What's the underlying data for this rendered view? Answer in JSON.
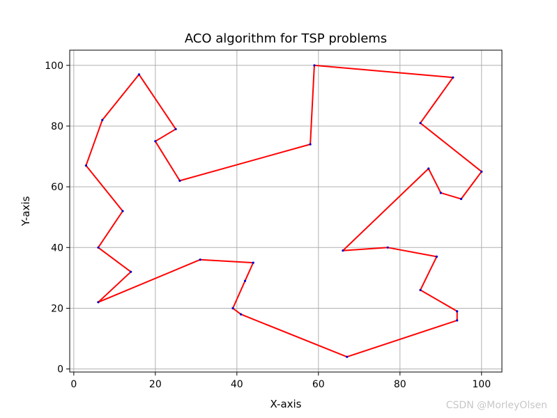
{
  "watermark": "CSDN @MorleyOlsen",
  "chart_data": {
    "type": "line",
    "title": "ACO algorithm for TSP problems",
    "xlabel": "X-axis",
    "ylabel": "Y-axis",
    "xlim": [
      -1,
      105
    ],
    "ylim": [
      -1,
      105
    ],
    "xticks": [
      0,
      20,
      40,
      60,
      80,
      100
    ],
    "yticks": [
      0,
      20,
      40,
      60,
      80,
      100
    ],
    "grid": true,
    "line_color": "#ff0000",
    "point_color": "#0000cc",
    "series": [
      {
        "x": [
          26,
          58,
          59,
          93,
          85,
          100,
          95,
          90,
          87,
          66,
          77,
          89,
          85,
          94,
          94,
          67,
          41,
          39,
          42,
          44,
          31,
          6,
          14,
          6,
          12,
          3,
          7,
          16,
          25,
          20,
          26
        ],
        "y": [
          62,
          74,
          100,
          96,
          81,
          65,
          56,
          58,
          66,
          39,
          40,
          37,
          26,
          19,
          16,
          4,
          18,
          20,
          29,
          35,
          36,
          22,
          32,
          40,
          52,
          67,
          82,
          97,
          79,
          75,
          62
        ]
      }
    ]
  }
}
